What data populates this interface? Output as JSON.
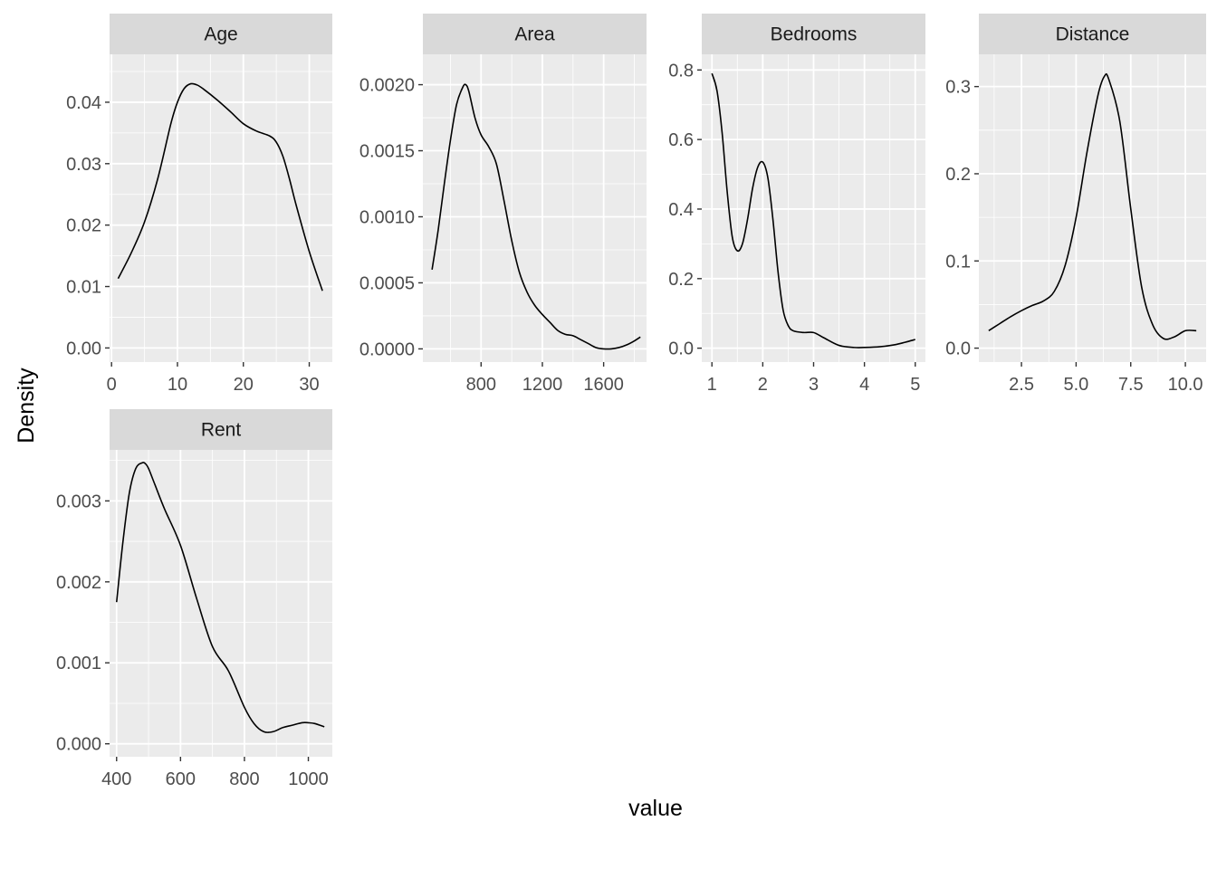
{
  "chart_data": {
    "type": "line",
    "xlabel": "value",
    "ylabel": "Density",
    "colors": {
      "panel_bg": "#EBEBEB",
      "strip_bg": "#D9D9D9",
      "grid": "#FFFFFF",
      "line": "#000000",
      "tick_text": "#4D4D4D"
    },
    "facets": [
      {
        "name": "Age",
        "xlim": [
          -0.3,
          33.5
        ],
        "ylim": [
          -0.0023,
          0.0478
        ],
        "xticks": [
          0,
          10,
          20,
          30
        ],
        "xtick_labels": [
          "0",
          "10",
          "20",
          "30"
        ],
        "yticks": [
          0,
          0.01,
          0.02,
          0.03,
          0.04
        ],
        "ytick_labels": [
          "0.00",
          "0.01",
          "0.02",
          "0.03",
          "0.04"
        ],
        "x": [
          1,
          3,
          5,
          7,
          9,
          10,
          11,
          12,
          13,
          14,
          16,
          18,
          20,
          22,
          24,
          25,
          26,
          27,
          28,
          30,
          32
        ],
        "y": [
          0.0113,
          0.0155,
          0.0205,
          0.0275,
          0.0365,
          0.04,
          0.0422,
          0.043,
          0.0428,
          0.0421,
          0.0404,
          0.0385,
          0.0365,
          0.0353,
          0.0345,
          0.0335,
          0.0312,
          0.0275,
          0.0233,
          0.0157,
          0.0093
        ]
      },
      {
        "name": "Area",
        "xlim": [
          420,
          1880
        ],
        "ylim": [
          -0.0001,
          0.00223
        ],
        "xticks": [
          800,
          1200,
          1600
        ],
        "xtick_labels": [
          "800",
          "1200",
          "1600"
        ],
        "yticks": [
          0,
          0.0005,
          0.001,
          0.0015,
          0.002
        ],
        "ytick_labels": [
          "0.0000",
          "0.0005",
          "0.0010",
          "0.0015",
          "0.0020"
        ],
        "x": [
          480,
          520,
          560,
          600,
          640,
          680,
          700,
          720,
          760,
          800,
          850,
          900,
          950,
          1000,
          1050,
          1100,
          1150,
          1200,
          1250,
          1300,
          1350,
          1400,
          1450,
          1500,
          1550,
          1600,
          1650,
          1700,
          1750,
          1800,
          1840
        ],
        "y": [
          0.0006,
          0.0009,
          0.00125,
          0.00158,
          0.00185,
          0.00198,
          0.002,
          0.00195,
          0.00175,
          0.00162,
          0.00153,
          0.0014,
          0.00112,
          0.00082,
          0.00058,
          0.00043,
          0.00033,
          0.00026,
          0.0002,
          0.00014,
          0.00011,
          0.0001,
          7e-05,
          4e-05,
          1e-05,
          0.0,
          0.0,
          1e-05,
          3e-05,
          6e-05,
          9e-05
        ]
      },
      {
        "name": "Bedrooms",
        "xlim": [
          0.8,
          5.2
        ],
        "ylim": [
          -0.04,
          0.845
        ],
        "xticks": [
          1,
          2,
          3,
          4,
          5
        ],
        "xtick_labels": [
          "1",
          "2",
          "3",
          "4",
          "5"
        ],
        "yticks": [
          0,
          0.2,
          0.4,
          0.6,
          0.8
        ],
        "ytick_labels": [
          "0.0",
          "0.2",
          "0.4",
          "0.6",
          "0.8"
        ],
        "x": [
          1,
          1.1,
          1.2,
          1.3,
          1.4,
          1.5,
          1.6,
          1.7,
          1.8,
          1.9,
          2.0,
          2.1,
          2.2,
          2.3,
          2.4,
          2.5,
          2.6,
          2.8,
          3.0,
          3.2,
          3.5,
          3.8,
          4.0,
          4.3,
          4.6,
          4.8,
          5.0
        ],
        "y": [
          0.79,
          0.74,
          0.62,
          0.45,
          0.32,
          0.28,
          0.3,
          0.37,
          0.46,
          0.52,
          0.535,
          0.49,
          0.37,
          0.22,
          0.11,
          0.065,
          0.05,
          0.045,
          0.045,
          0.03,
          0.008,
          0.002,
          0.002,
          0.004,
          0.01,
          0.017,
          0.025
        ]
      },
      {
        "name": "Distance",
        "xlim": [
          0.55,
          10.95
        ],
        "ylim": [
          -0.016,
          0.337
        ],
        "xticks": [
          2.5,
          5.0,
          7.5,
          10.0
        ],
        "xtick_labels": [
          "2.5",
          "5.0",
          "7.5",
          "10.0"
        ],
        "yticks": [
          0,
          0.1,
          0.2,
          0.3
        ],
        "ytick_labels": [
          "0.0",
          "0.1",
          "0.2",
          "0.3"
        ],
        "x": [
          1.0,
          1.5,
          2.0,
          2.5,
          3.0,
          3.5,
          4.0,
          4.5,
          5.0,
          5.5,
          6.0,
          6.3,
          6.5,
          7.0,
          7.5,
          8.0,
          8.5,
          9.0,
          9.5,
          10.0,
          10.5
        ],
        "y": [
          0.02,
          0.028,
          0.036,
          0.043,
          0.049,
          0.054,
          0.065,
          0.095,
          0.15,
          0.225,
          0.29,
          0.312,
          0.308,
          0.26,
          0.16,
          0.07,
          0.027,
          0.011,
          0.013,
          0.02,
          0.02
        ]
      },
      {
        "name": "Rent",
        "xlim": [
          378,
          1075
        ],
        "ylim": [
          -0.00016,
          0.00363
        ],
        "xticks": [
          400,
          600,
          800,
          1000
        ],
        "xtick_labels": [
          "400",
          "600",
          "800",
          "1000"
        ],
        "yticks": [
          0,
          0.001,
          0.002,
          0.003
        ],
        "ytick_labels": [
          "0.000",
          "0.001",
          "0.002",
          "0.003"
        ],
        "x": [
          400,
          420,
          440,
          460,
          480,
          490,
          500,
          520,
          550,
          600,
          650,
          700,
          750,
          800,
          830,
          860,
          890,
          920,
          950,
          980,
          1000,
          1020,
          1050
        ],
        "y": [
          0.00175,
          0.0025,
          0.0031,
          0.0034,
          0.00347,
          0.00346,
          0.0034,
          0.0032,
          0.0029,
          0.00245,
          0.0018,
          0.0012,
          0.0009,
          0.00045,
          0.00025,
          0.00015,
          0.00015,
          0.0002,
          0.00023,
          0.00026,
          0.00026,
          0.00025,
          0.00021
        ]
      }
    ]
  }
}
